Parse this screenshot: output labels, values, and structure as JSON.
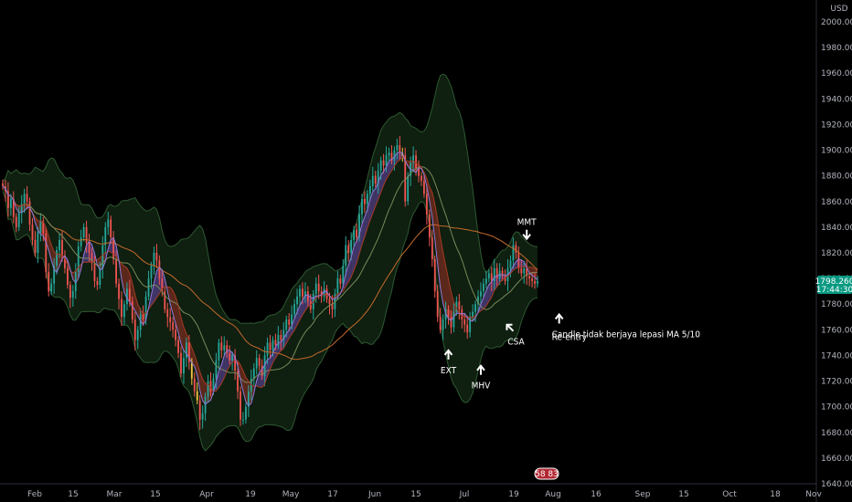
{
  "chart_data": {
    "type": "candlestick",
    "currency": "USD",
    "ylim": [
      1640,
      2010
    ],
    "y_ticks": [
      "2000.000",
      "1980.000",
      "1960.000",
      "1940.000",
      "1920.000",
      "1900.000",
      "1880.000",
      "1860.000",
      "1840.000",
      "1820.000",
      "1800.000",
      "1780.000",
      "1760.000",
      "1740.000",
      "1720.000",
      "1700.000",
      "1680.000",
      "1660.000",
      "1640.000"
    ],
    "x_ticks": [
      "Feb",
      "15",
      "Mar",
      "15",
      "Apr",
      "19",
      "May",
      "17",
      "Jun",
      "15",
      "Jul",
      "19",
      "Aug",
      "16",
      "Sep",
      "15",
      "Oct",
      "18",
      "Nov"
    ],
    "price_label": {
      "value": "1798.260",
      "countdown": "17:44:30"
    },
    "candles_close": [
      1872,
      1868,
      1855,
      1862,
      1848,
      1840,
      1851,
      1858,
      1866,
      1860,
      1842,
      1830,
      1820,
      1836,
      1845,
      1835,
      1805,
      1790,
      1796,
      1810,
      1822,
      1830,
      1818,
      1808,
      1795,
      1785,
      1790,
      1805,
      1825,
      1832,
      1840,
      1828,
      1820,
      1812,
      1798,
      1795,
      1808,
      1826,
      1840,
      1846,
      1832,
      1815,
      1796,
      1784,
      1770,
      1780,
      1792,
      1782,
      1768,
      1752,
      1760,
      1772,
      1768,
      1786,
      1800,
      1810,
      1820,
      1814,
      1800,
      1790,
      1776,
      1770,
      1766,
      1760,
      1752,
      1742,
      1726,
      1738,
      1750,
      1735,
      1722,
      1712,
      1705,
      1690,
      1695,
      1708,
      1720,
      1712,
      1722,
      1736,
      1750,
      1744,
      1748,
      1742,
      1736,
      1740,
      1728,
      1712,
      1690,
      1690,
      1700,
      1712,
      1722,
      1730,
      1738,
      1732,
      1724,
      1740,
      1750,
      1744,
      1752,
      1748,
      1756,
      1752,
      1760,
      1768,
      1764,
      1772,
      1780,
      1786,
      1792,
      1786,
      1790,
      1782,
      1776,
      1788,
      1796,
      1790,
      1786,
      1792,
      1784,
      1780,
      1776,
      1788,
      1800,
      1796,
      1810,
      1826,
      1820,
      1830,
      1838,
      1832,
      1850,
      1862,
      1858,
      1866,
      1872,
      1880,
      1874,
      1884,
      1892,
      1888,
      1896,
      1898,
      1892,
      1900,
      1904,
      1898,
      1896,
      1860,
      1880,
      1890,
      1896,
      1886,
      1880,
      1876,
      1866,
      1850,
      1832,
      1815,
      1790,
      1770,
      1760,
      1768,
      1776,
      1770,
      1762,
      1774,
      1782,
      1776,
      1768,
      1764,
      1758,
      1770,
      1774,
      1780,
      1786,
      1790,
      1796,
      1800,
      1804,
      1798,
      1808,
      1800,
      1806,
      1802,
      1798,
      1808,
      1814,
      1826,
      1820,
      1808,
      1804,
      1808,
      1802,
      1800,
      1798,
      1796,
      1798
    ],
    "ma_5_10": {
      "name": "MA 5/10"
    },
    "annotations": [
      {
        "label": "EXT",
        "x_index": 165,
        "y": 1744,
        "arrow": "up"
      },
      {
        "label": "MHV",
        "x_index": 177,
        "y": 1732,
        "arrow": "up"
      },
      {
        "label": "CSA",
        "x_index": 188,
        "y": 1764,
        "arrow": "up-left"
      },
      {
        "label": "MMT",
        "x_index": 194,
        "y": 1838,
        "arrow": "down"
      },
      {
        "label": "Re-entry",
        "x_index": 206,
        "y": 1772,
        "arrow": "up"
      },
      {
        "label": "Candle tidak berjaya lepasi MA 5/10",
        "x_index": 206,
        "y": 1764
      }
    ]
  },
  "badge": {
    "text": "58 83"
  }
}
